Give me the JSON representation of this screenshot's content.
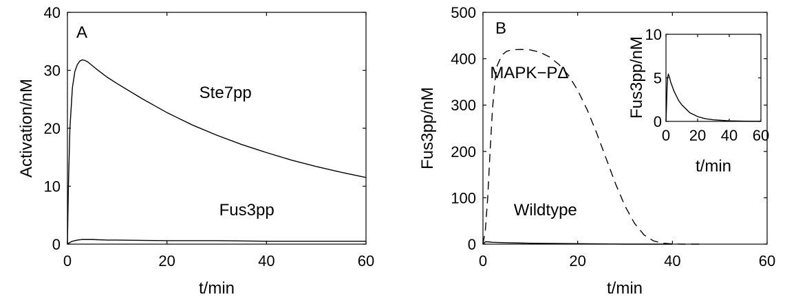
{
  "chart_data": [
    {
      "type": "line",
      "panel_label": "A",
      "xlabel": "t/min",
      "ylabel": "Activation/nM",
      "xlim": [
        0,
        60
      ],
      "ylim": [
        0,
        40
      ],
      "x_ticks": [
        "0",
        "20",
        "40",
        "60"
      ],
      "y_ticks": [
        "0",
        "10",
        "20",
        "30",
        "40"
      ],
      "series": [
        {
          "name": "Ste7pp",
          "style": "solid",
          "x": [
            0,
            0.2,
            0.5,
            1,
            1.5,
            2,
            2.5,
            3,
            3.5,
            4,
            5,
            6,
            8,
            10,
            15,
            20,
            25,
            30,
            35,
            40,
            45,
            50,
            55,
            60
          ],
          "y": [
            0,
            10,
            20,
            27,
            29.8,
            31,
            31.6,
            31.8,
            31.7,
            31.5,
            30.8,
            30.1,
            28.8,
            27.7,
            25.1,
            22.7,
            20.6,
            18.8,
            17.2,
            15.8,
            14.5,
            13.4,
            12.4,
            11.5
          ]
        },
        {
          "name": "Fus3pp",
          "style": "solid",
          "x": [
            0,
            0.5,
            1,
            2,
            3,
            4,
            5,
            8,
            10,
            20,
            30,
            40,
            50,
            60
          ],
          "y": [
            0,
            0.3,
            0.5,
            0.7,
            0.8,
            0.8,
            0.8,
            0.7,
            0.7,
            0.6,
            0.6,
            0.5,
            0.5,
            0.5
          ]
        }
      ],
      "annotations": [
        {
          "text": "Ste7pp",
          "x": 26.5,
          "y": 25.2
        },
        {
          "text": "Fus3pp",
          "x": 30.5,
          "y": 5.0
        }
      ]
    },
    {
      "type": "line",
      "panel_label": "B",
      "xlabel": "t/min",
      "ylabel": "Fus3pp/nM",
      "xlim": [
        0,
        60
      ],
      "ylim": [
        0,
        500
      ],
      "x_ticks": [
        "0",
        "20",
        "40",
        "60"
      ],
      "y_ticks": [
        "0",
        "100",
        "200",
        "300",
        "400",
        "500"
      ],
      "series": [
        {
          "name": "MAPK−PΔ",
          "style": "dashed",
          "x": [
            0,
            0.5,
            1,
            1.5,
            2,
            2.5,
            3,
            4,
            5,
            6,
            8,
            10,
            12,
            14,
            16,
            18,
            20,
            22,
            24,
            26,
            28,
            30,
            32,
            34,
            36,
            38,
            40,
            42,
            44,
            46
          ],
          "y": [
            0,
            30,
            100,
            200,
            290,
            350,
            385,
            408,
            416,
            419,
            420,
            419,
            414,
            404,
            388,
            365,
            332,
            290,
            240,
            185,
            130,
            82,
            45,
            20,
            7,
            2,
            0.5,
            0,
            0,
            0
          ]
        },
        {
          "name": "Wildtype",
          "style": "solid",
          "x": [
            0,
            0.5,
            1,
            2,
            5,
            10,
            20,
            30,
            40
          ],
          "y": [
            0,
            5,
            5,
            4,
            3,
            2,
            1,
            0,
            0
          ]
        }
      ],
      "annotations": [
        {
          "text": "MAPK−PΔ",
          "x": 1.5,
          "y": 358
        },
        {
          "text": "Wildtype",
          "x": 6.5,
          "y": 62
        }
      ],
      "inset": {
        "type": "line",
        "xlabel": "t/min",
        "ylabel": "Fus3pp/nM",
        "xlim": [
          0,
          60
        ],
        "ylim": [
          0,
          10
        ],
        "x_ticks": [
          "0",
          "20",
          "40",
          "60"
        ],
        "y_ticks": [
          "0",
          "5",
          "10"
        ],
        "series": [
          {
            "name": "Wildtype",
            "style": "solid",
            "x": [
              0,
              0.3,
              0.7,
              1,
              1.5,
              2,
              3,
              5,
              8,
              10,
              15,
              20,
              25,
              30,
              40,
              50,
              60
            ],
            "y": [
              0,
              1.5,
              4,
              5,
              5.4,
              5.2,
              4.5,
              3.5,
              2.4,
              1.9,
              1.0,
              0.55,
              0.3,
              0.18,
              0.06,
              0.02,
              0.01
            ]
          }
        ]
      }
    }
  ]
}
